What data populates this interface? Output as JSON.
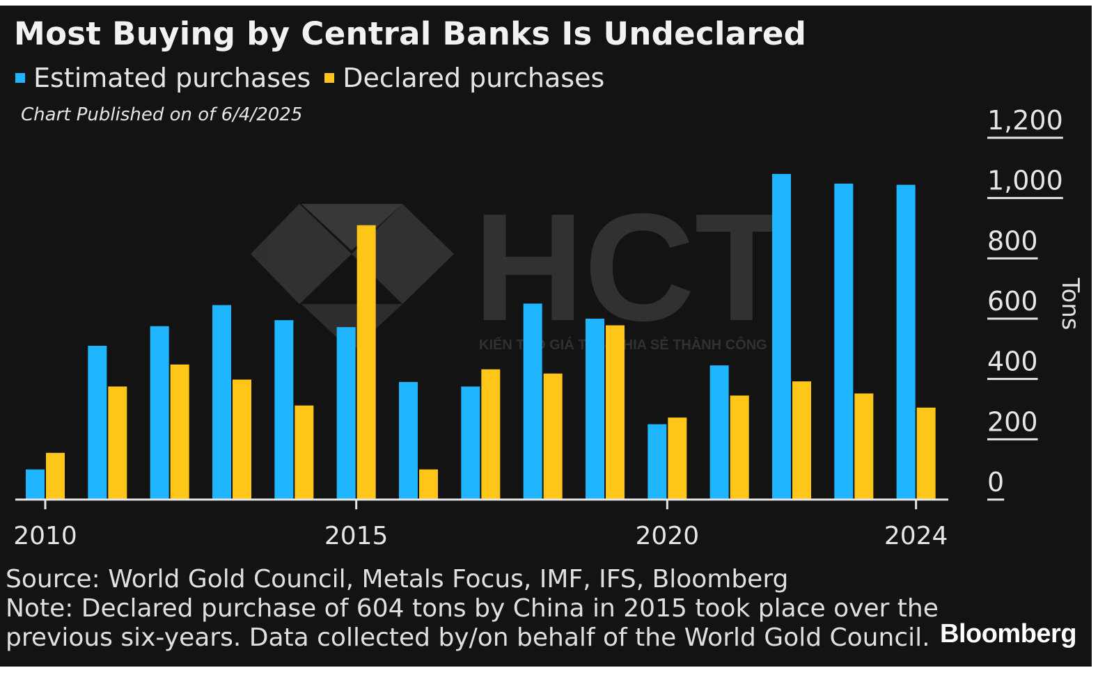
{
  "title": "Most Buying by Central Banks Is Undeclared",
  "subtitle": "Chart Published on of 6/4/2025",
  "legend": [
    {
      "label": "Estimated purchases",
      "color": "#1fb5ff"
    },
    {
      "label": "Declared purchases",
      "color": "#ffc61a"
    }
  ],
  "source": "Source: World Gold Council, Metals Focus, IMF, IFS, Bloomberg",
  "note_line1": "Note: Declared purchase of 604 tons by China in 2015 took place over the",
  "note_line2": "previous six-years. Data collected by/on behalf of the World Gold Council.",
  "brand": "Bloomberg",
  "watermark": {
    "text": "HCT",
    "tagline": "KIẾN TẠO GIÁ TRỊ - CHIA SẺ THÀNH CÔNG"
  },
  "chart_data": {
    "type": "bar",
    "categories": [
      "2010",
      "2011",
      "2012",
      "2013",
      "2014",
      "2015",
      "2016",
      "2017",
      "2018",
      "2019",
      "2020",
      "2021",
      "2022",
      "2023",
      "2024"
    ],
    "series": [
      {
        "name": "Estimated purchases",
        "color": "#1fb5ff",
        "values": [
          100,
          510,
          575,
          645,
          595,
          572,
          390,
          375,
          650,
          600,
          250,
          445,
          1080,
          1048,
          1044
        ]
      },
      {
        "name": "Declared purchases",
        "color": "#ffc61a",
        "values": [
          155,
          375,
          448,
          398,
          312,
          910,
          100,
          432,
          418,
          578,
          272,
          345,
          392,
          352,
          305
        ]
      }
    ],
    "x_tick_labels": [
      "2010",
      "2015",
      "2020",
      "2024"
    ],
    "y_ticks": [
      0,
      200,
      400,
      600,
      800,
      1000,
      1200
    ],
    "y_tick_labels": [
      "0",
      "200",
      "400",
      "600",
      "800",
      "1,000",
      "1,200"
    ],
    "ylabel": "Tons",
    "ylim": [
      0,
      1200
    ],
    "y_axis_side": "right",
    "legend_position": "top-left"
  }
}
